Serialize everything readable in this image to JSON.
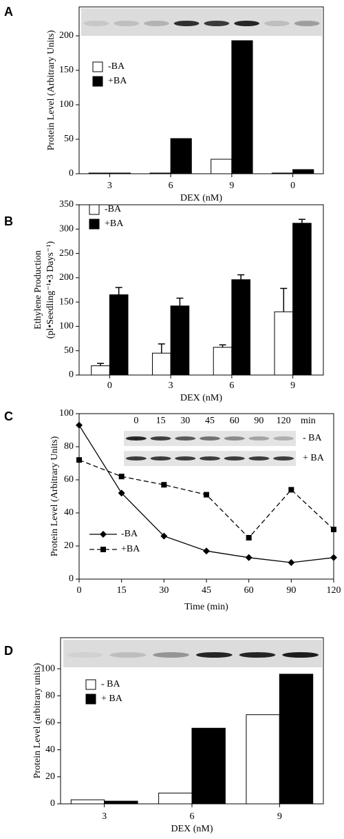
{
  "chart_data": [
    {
      "type": "bar",
      "panel": "A",
      "y_label": [
        "Protein Level (Arbitrary Units)"
      ],
      "x_label": "DEX (nM)",
      "categories": [
        "3",
        "6",
        "9",
        "0"
      ],
      "series": [
        {
          "name": "-BA",
          "color": "#ffffff",
          "values": [
            1,
            1,
            21,
            1
          ]
        },
        {
          "name": "+BA",
          "color": "#000000",
          "values": [
            1,
            51,
            193,
            6
          ]
        }
      ],
      "ylim": [
        0,
        242
      ],
      "yticks": [
        0,
        50,
        100,
        150,
        200
      ]
    },
    {
      "type": "bar",
      "panel": "B",
      "y_label": [
        "Ethylene Production",
        "(pl•Seedling⁻¹•3 Days⁻¹)"
      ],
      "x_label": "DEX (nM)",
      "categories": [
        "0",
        "3",
        "6",
        "9"
      ],
      "series": [
        {
          "name": "-BA",
          "color": "#ffffff",
          "values": [
            19,
            45,
            57,
            130
          ],
          "errors": [
            5,
            19,
            5,
            48
          ]
        },
        {
          "name": "+BA",
          "color": "#000000",
          "values": [
            165,
            142,
            196,
            312
          ],
          "errors": [
            15,
            16,
            10,
            8
          ]
        }
      ],
      "ylim": [
        0,
        350
      ],
      "yticks": [
        0,
        50,
        100,
        150,
        200,
        250,
        300,
        350
      ]
    },
    {
      "type": "line",
      "panel": "C",
      "y_label": [
        "Protein Level (Arbitrary Units)"
      ],
      "x_label": "Time (min)",
      "categories": [
        "0",
        "15",
        "30",
        "45",
        "60",
        "90",
        "120"
      ],
      "series": [
        {
          "name": "-BA",
          "color": "#000000",
          "marker": "diamond",
          "dashed": false,
          "values": [
            93,
            52,
            26,
            17,
            13,
            10,
            13
          ]
        },
        {
          "name": "+BA",
          "color": "#000000",
          "marker": "square",
          "dashed": true,
          "values": [
            72,
            62,
            57,
            51,
            25,
            54,
            30
          ]
        }
      ],
      "ylim": [
        0,
        100
      ],
      "yticks": [
        0,
        20,
        40,
        60,
        80,
        100
      ],
      "blot_columns": [
        "0",
        "15",
        "30",
        "45",
        "60",
        "90",
        "120",
        "min"
      ],
      "blot_rows": [
        "- BA",
        "+ BA"
      ]
    },
    {
      "type": "bar",
      "panel": "D",
      "y_label": [
        "Protein Level (arbitrary units)"
      ],
      "x_label": "DEX (nM)",
      "categories": [
        "3",
        "6",
        "9"
      ],
      "series": [
        {
          "name": "- BA",
          "color": "#ffffff",
          "values": [
            3,
            8,
            66
          ]
        },
        {
          "name": "+ BA",
          "color": "#000000",
          "values": [
            2,
            56,
            96
          ]
        }
      ],
      "ylim": [
        0,
        123
      ],
      "yticks": [
        0,
        20,
        40,
        60,
        80,
        100
      ]
    }
  ]
}
